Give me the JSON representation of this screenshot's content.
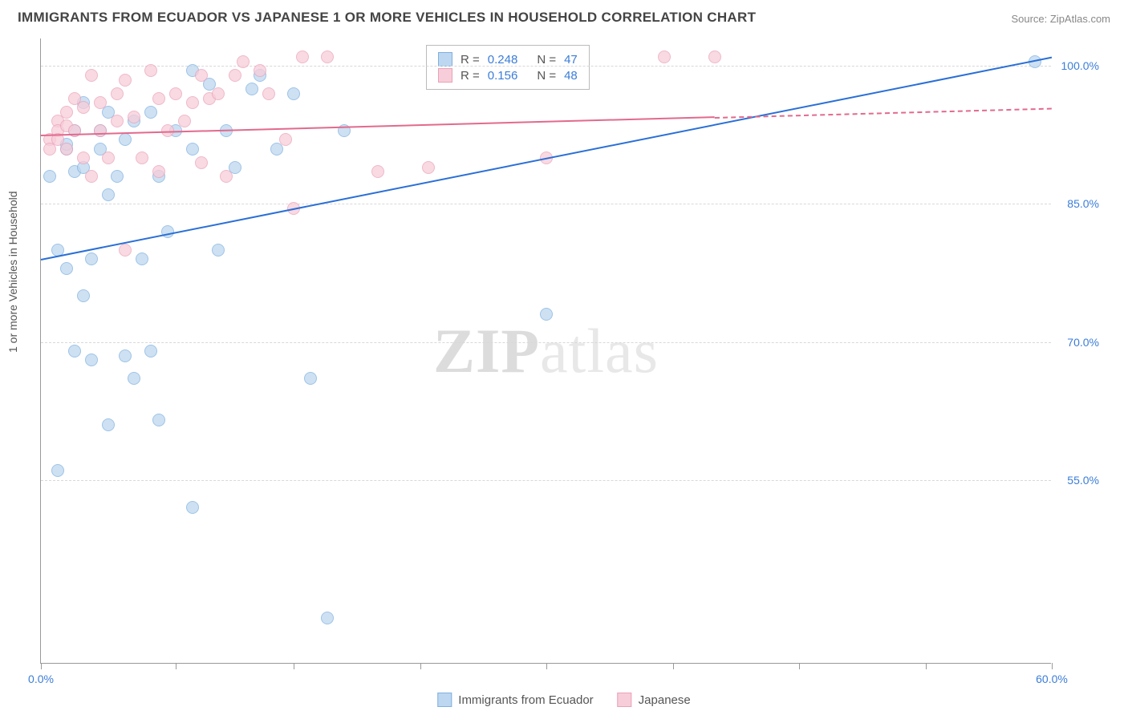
{
  "title": "IMMIGRANTS FROM ECUADOR VS JAPANESE 1 OR MORE VEHICLES IN HOUSEHOLD CORRELATION CHART",
  "source": "Source: ZipAtlas.com",
  "ylabel": "1 or more Vehicles in Household",
  "watermark": {
    "part1": "ZIP",
    "part2": "atlas"
  },
  "chart": {
    "type": "scatter",
    "background_color": "#ffffff",
    "grid_color": "#d8d8d8",
    "axis_color": "#999999",
    "xlim": [
      0,
      60
    ],
    "ylim": [
      35,
      103
    ],
    "xticks": [
      0,
      8,
      15,
      22.5,
      30,
      37.5,
      45,
      52.5,
      60
    ],
    "xtick_labels": {
      "0": "0.0%",
      "60": "60.0%"
    },
    "yticks": [
      55,
      70,
      85,
      100
    ],
    "ytick_labels": {
      "55": "55.0%",
      "70": "70.0%",
      "85": "85.0%",
      "100": "100.0%"
    },
    "marker_size": 16,
    "marker_opacity": 0.75
  },
  "series": [
    {
      "name": "Immigrants from Ecuador",
      "color_fill": "#bdd7f0",
      "color_stroke": "#7fb0e0",
      "trend_color": "#2a6fd6",
      "r": "0.248",
      "n": "47",
      "trend": {
        "x1": 0,
        "y1": 79,
        "x2": 60,
        "y2": 101
      },
      "points": [
        [
          0.5,
          88
        ],
        [
          1,
          80
        ],
        [
          1,
          56
        ],
        [
          1.5,
          91
        ],
        [
          1.5,
          91.5
        ],
        [
          1.5,
          78
        ],
        [
          2,
          93
        ],
        [
          2,
          88.5
        ],
        [
          2,
          69
        ],
        [
          2.5,
          96
        ],
        [
          2.5,
          89
        ],
        [
          2.5,
          75
        ],
        [
          3,
          79
        ],
        [
          3,
          68
        ],
        [
          3.5,
          93
        ],
        [
          3.5,
          91
        ],
        [
          4,
          95
        ],
        [
          4,
          86
        ],
        [
          4,
          61
        ],
        [
          4.5,
          88
        ],
        [
          5,
          92
        ],
        [
          5,
          68.5
        ],
        [
          5.5,
          94
        ],
        [
          5.5,
          66
        ],
        [
          6,
          79
        ],
        [
          6.5,
          95
        ],
        [
          6.5,
          69
        ],
        [
          7,
          88
        ],
        [
          7,
          61.5
        ],
        [
          7.5,
          82
        ],
        [
          8,
          93
        ],
        [
          9,
          99.5
        ],
        [
          9,
          91
        ],
        [
          9,
          52
        ],
        [
          10,
          98
        ],
        [
          10.5,
          80
        ],
        [
          11,
          93
        ],
        [
          11.5,
          89
        ],
        [
          12.5,
          97.5
        ],
        [
          13,
          99
        ],
        [
          14,
          91
        ],
        [
          15,
          97
        ],
        [
          16,
          66
        ],
        [
          17,
          40
        ],
        [
          18,
          93
        ],
        [
          30,
          73
        ],
        [
          59,
          100.5
        ]
      ]
    },
    {
      "name": "Japanese",
      "color_fill": "#f7cdd9",
      "color_stroke": "#eaa2b8",
      "trend_color": "#e26a8d",
      "r": "0.156",
      "n": "48",
      "trend": {
        "x1": 0,
        "y1": 92.5,
        "x2": 40,
        "y2": 94.5,
        "dash_from": 40,
        "dash_to": 60,
        "dash_y": 95.5
      },
      "points": [
        [
          0.5,
          92
        ],
        [
          0.5,
          91
        ],
        [
          1,
          94
        ],
        [
          1,
          93
        ],
        [
          1,
          92
        ],
        [
          1.5,
          95
        ],
        [
          1.5,
          91
        ],
        [
          1.5,
          93.5
        ],
        [
          2,
          93
        ],
        [
          2,
          96.5
        ],
        [
          2.5,
          90
        ],
        [
          2.5,
          95.5
        ],
        [
          3,
          99
        ],
        [
          3,
          88
        ],
        [
          3.5,
          96
        ],
        [
          3.5,
          93
        ],
        [
          4,
          90
        ],
        [
          4.5,
          97
        ],
        [
          4.5,
          94
        ],
        [
          5,
          80
        ],
        [
          5,
          98.5
        ],
        [
          5.5,
          94.5
        ],
        [
          6,
          90
        ],
        [
          6.5,
          99.5
        ],
        [
          7,
          96.5
        ],
        [
          7,
          88.5
        ],
        [
          7.5,
          93
        ],
        [
          8,
          97
        ],
        [
          8.5,
          94
        ],
        [
          9,
          96
        ],
        [
          9.5,
          99
        ],
        [
          9.5,
          89.5
        ],
        [
          10,
          96.5
        ],
        [
          10.5,
          97
        ],
        [
          11,
          88
        ],
        [
          11.5,
          99
        ],
        [
          12,
          100.5
        ],
        [
          13,
          99.5
        ],
        [
          13.5,
          97
        ],
        [
          14.5,
          92
        ],
        [
          15,
          84.5
        ],
        [
          15.5,
          101
        ],
        [
          17,
          101
        ],
        [
          20,
          88.5
        ],
        [
          23,
          89
        ],
        [
          30,
          90
        ],
        [
          37,
          101
        ],
        [
          40,
          101
        ]
      ]
    }
  ],
  "bottom_legend": [
    {
      "label": "Immigrants from Ecuador",
      "fill": "#bdd7f0",
      "stroke": "#7fb0e0"
    },
    {
      "label": "Japanese",
      "fill": "#f7cdd9",
      "stroke": "#eaa2b8"
    }
  ]
}
